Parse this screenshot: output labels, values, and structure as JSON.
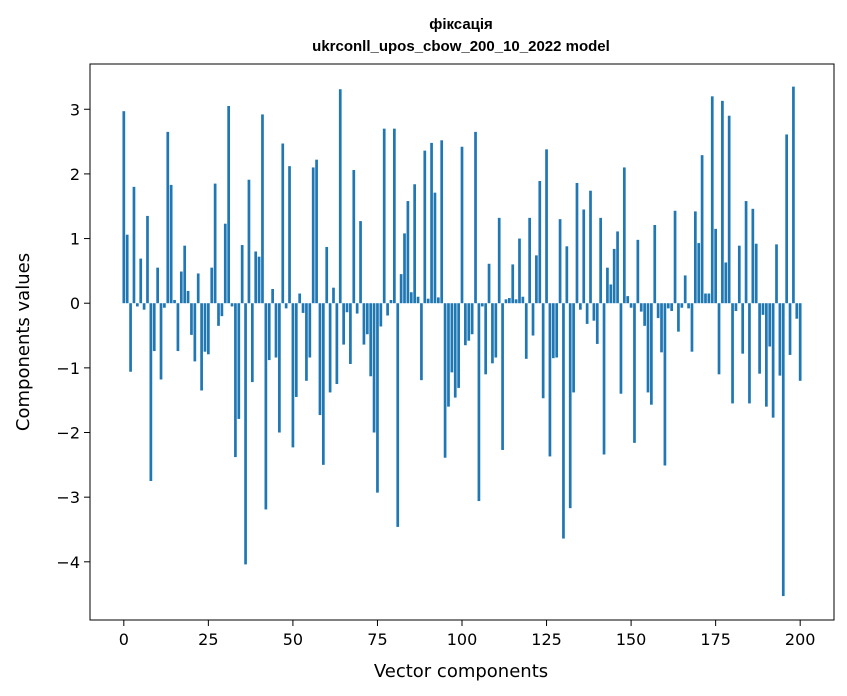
{
  "chart_data": {
    "type": "bar",
    "title": "фіксація",
    "subtitle": "ukrconll_upos_cbow_200_10_2022 model",
    "xlabel": "Vector components",
    "ylabel": "Components values",
    "xlim": [
      -10,
      210
    ],
    "ylim": [
      -4.9,
      3.7
    ],
    "xticks": [
      0,
      25,
      50,
      75,
      100,
      125,
      150,
      175,
      200
    ],
    "yticks": [
      -4,
      -3,
      -2,
      -1,
      0,
      1,
      2,
      3
    ],
    "grid": false,
    "bar_color": "#1f77b4",
    "values": [
      2.97,
      1.06,
      -1.06,
      1.8,
      -0.05,
      0.69,
      -0.1,
      1.35,
      -2.75,
      -0.74,
      0.55,
      -1.18,
      -0.07,
      2.65,
      1.83,
      0.05,
      -0.74,
      0.49,
      0.89,
      0.19,
      -0.49,
      -0.9,
      0.46,
      -1.35,
      -0.75,
      -0.79,
      0.55,
      1.85,
      -0.35,
      -0.2,
      1.23,
      3.05,
      -0.05,
      -2.38,
      -1.79,
      0.9,
      -4.04,
      1.91,
      -1.22,
      0.8,
      0.72,
      2.92,
      -3.19,
      -0.88,
      0.22,
      -0.84,
      -2.0,
      2.47,
      -0.08,
      2.12,
      -2.23,
      -1.45,
      0.15,
      -0.15,
      -1.2,
      -0.84,
      2.1,
      2.22,
      -1.73,
      -2.5,
      0.87,
      -1.38,
      0.24,
      -1.25,
      3.31,
      -0.64,
      -0.14,
      -0.94,
      2.06,
      -0.16,
      1.27,
      -0.64,
      -0.48,
      -1.13,
      -2.0,
      -2.93,
      -0.36,
      2.7,
      -0.19,
      0.05,
      2.7,
      -3.46,
      0.45,
      1.08,
      1.58,
      0.17,
      1.84,
      0.1,
      -1.19,
      2.36,
      0.07,
      2.48,
      1.71,
      0.09,
      2.52,
      -2.39,
      -1.6,
      -1.07,
      -1.46,
      -1.31,
      2.42,
      -0.65,
      -0.58,
      -0.48,
      2.65,
      -3.06,
      -0.05,
      -1.1,
      0.61,
      -0.93,
      -0.84,
      1.32,
      -2.27,
      0.06,
      0.08,
      0.6,
      0.06,
      1.0,
      0.1,
      -0.86,
      1.32,
      -0.5,
      0.74,
      1.89,
      -1.47,
      2.38,
      -2.37,
      -0.85,
      -0.84,
      1.3,
      -3.64,
      0.88,
      -3.17,
      -1.38,
      1.86,
      -0.1,
      1.45,
      -0.32,
      1.74,
      -0.27,
      -0.63,
      1.32,
      -2.34,
      0.55,
      0.29,
      0.84,
      1.11,
      -1.4,
      2.1,
      0.11,
      -0.07,
      -2.16,
      0.98,
      -0.13,
      -0.35,
      -1.38,
      -1.57,
      1.21,
      -0.23,
      -0.76,
      -2.51,
      -0.08,
      -0.12,
      1.43,
      -0.44,
      -0.07,
      0.43,
      -0.08,
      -0.75,
      1.42,
      0.93,
      2.29,
      0.15,
      0.15,
      3.2,
      1.15,
      -1.1,
      3.13,
      0.63,
      2.9,
      -1.55,
      -0.12,
      0.89,
      -0.78,
      1.58,
      -1.55,
      1.46,
      0.92,
      -1.09,
      -0.18,
      -1.6,
      -0.67,
      -1.77,
      0.91,
      -1.12,
      -4.53,
      2.61,
      -0.8,
      3.35,
      -0.24,
      -1.2
    ]
  }
}
